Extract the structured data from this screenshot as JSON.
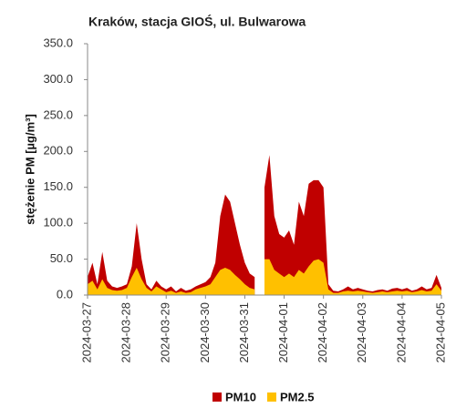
{
  "chart_data": {
    "type": "area",
    "title": "Kraków, stacja GIOŚ, ul. Bulwarowa",
    "y_label": "stężenie PM [µg/m³]",
    "x": [
      0,
      0.125,
      0.25,
      0.375,
      0.5,
      0.625,
      0.75,
      0.875,
      1,
      1.125,
      1.25,
      1.375,
      1.5,
      1.625,
      1.75,
      1.875,
      2,
      2.125,
      2.25,
      2.375,
      2.5,
      2.625,
      2.75,
      2.875,
      3,
      3.125,
      3.25,
      3.375,
      3.5,
      3.625,
      3.75,
      3.875,
      4,
      4.125,
      4.25,
      4.375,
      4.5,
      4.625,
      4.75,
      4.875,
      5,
      5.125,
      5.25,
      5.375,
      5.5,
      5.625,
      5.75,
      5.875,
      6,
      6.125,
      6.25,
      6.375,
      6.5,
      6.625,
      6.75,
      6.875,
      7,
      7.125,
      7.25,
      7.375,
      7.5,
      7.625,
      7.75,
      7.875,
      8,
      8.125,
      8.25,
      8.375,
      8.5,
      8.625,
      8.75,
      8.875,
      9
    ],
    "series": [
      {
        "name": "PM10",
        "color": "#c00000",
        "values": [
          25,
          45,
          15,
          60,
          20,
          12,
          10,
          12,
          15,
          40,
          100,
          50,
          15,
          8,
          20,
          12,
          8,
          12,
          5,
          10,
          6,
          8,
          12,
          15,
          18,
          25,
          45,
          110,
          140,
          130,
          100,
          70,
          45,
          30,
          25,
          null,
          150,
          195,
          110,
          85,
          80,
          90,
          70,
          130,
          110,
          155,
          160,
          160,
          150,
          15,
          6,
          5,
          8,
          12,
          8,
          10,
          8,
          6,
          5,
          7,
          8,
          6,
          9,
          10,
          8,
          10,
          6,
          8,
          12,
          8,
          10,
          28,
          10
        ]
      },
      {
        "name": "PM2.5",
        "color": "#ffc000",
        "values": [
          15,
          20,
          8,
          22,
          10,
          7,
          6,
          7,
          10,
          25,
          38,
          22,
          10,
          5,
          12,
          8,
          4,
          6,
          3,
          5,
          3,
          4,
          8,
          10,
          12,
          15,
          25,
          35,
          38,
          35,
          28,
          22,
          15,
          10,
          8,
          null,
          50,
          50,
          35,
          30,
          25,
          30,
          25,
          35,
          30,
          40,
          48,
          50,
          45,
          8,
          3,
          3,
          5,
          6,
          5,
          6,
          5,
          4,
          3,
          4,
          5,
          4,
          5,
          6,
          5,
          6,
          4,
          5,
          7,
          5,
          6,
          15,
          6
        ]
      }
    ],
    "xlim": [
      0,
      9
    ],
    "xticks": [
      {
        "value": 0,
        "label": "2024-03-27"
      },
      {
        "value": 1,
        "label": "2024-03-28"
      },
      {
        "value": 2,
        "label": "2024-03-29"
      },
      {
        "value": 3,
        "label": "2024-03-30"
      },
      {
        "value": 4,
        "label": "2024-03-31"
      },
      {
        "value": 5,
        "label": "2024-04-01"
      },
      {
        "value": 6,
        "label": "2024-04-02"
      },
      {
        "value": 7,
        "label": "2024-04-03"
      },
      {
        "value": 8,
        "label": "2024-04-04"
      },
      {
        "value": 9,
        "label": "2024-04-05"
      }
    ],
    "ylim": [
      0,
      350
    ],
    "yticks": [
      {
        "value": 0,
        "label": "0.0"
      },
      {
        "value": 50,
        "label": "50.0"
      },
      {
        "value": 100,
        "label": "100.0"
      },
      {
        "value": 150,
        "label": "150.0"
      },
      {
        "value": 200,
        "label": "200.0"
      },
      {
        "value": 250,
        "label": "250.0"
      },
      {
        "value": 300,
        "label": "300.0"
      },
      {
        "value": 350,
        "label": "350.0"
      }
    ],
    "grid": false,
    "legend": "bottom"
  }
}
